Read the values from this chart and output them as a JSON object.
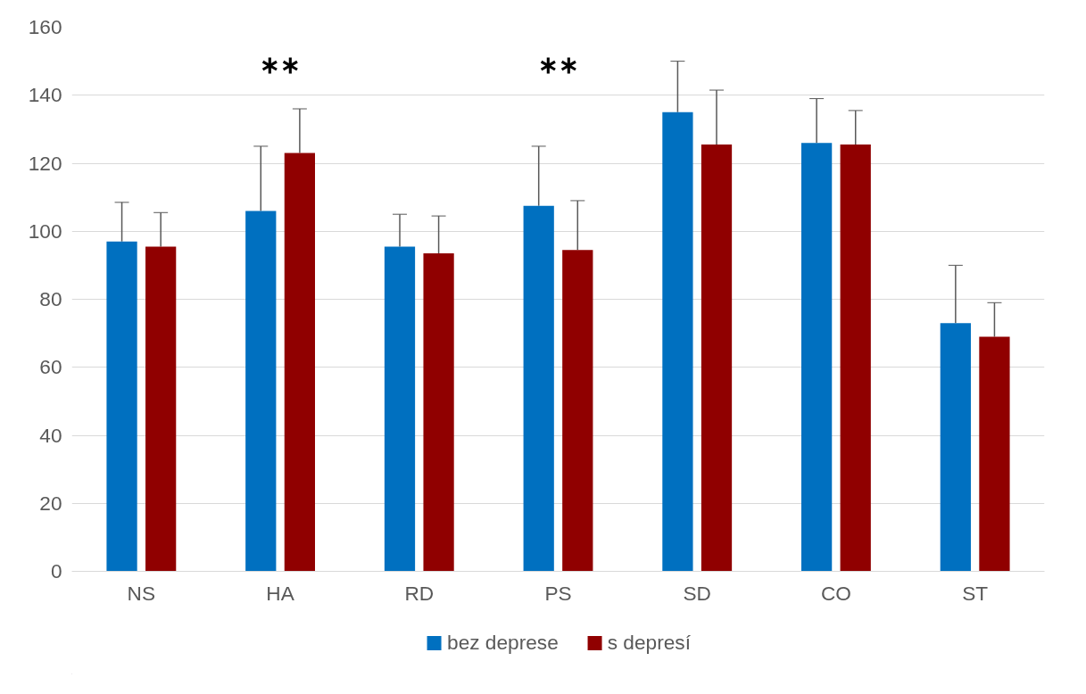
{
  "chart_data": {
    "type": "bar",
    "categories": [
      "NS",
      "HA",
      "RD",
      "PS",
      "SD",
      "CO",
      "ST"
    ],
    "series": [
      {
        "name": "bez deprese",
        "color": "#0070c0",
        "values": [
          97,
          106,
          95.5,
          107.5,
          135,
          126,
          73
        ],
        "errors": [
          [
            97,
            108.5
          ],
          [
            106,
            125
          ],
          [
            95.5,
            105
          ],
          [
            107.5,
            125
          ],
          [
            135,
            150
          ],
          [
            126,
            139
          ],
          [
            73,
            90
          ]
        ]
      },
      {
        "name": "s depresí",
        "color": "#900000",
        "values": [
          95.5,
          123,
          93.5,
          94.5,
          125.5,
          125.5,
          69
        ],
        "errors": [
          [
            95.5,
            105.5
          ],
          [
            123,
            136
          ],
          [
            93.5,
            104.5
          ],
          [
            94.5,
            109
          ],
          [
            125.5,
            141.5
          ],
          [
            125.5,
            135.5
          ],
          [
            69,
            79
          ]
        ]
      }
    ],
    "ylim": [
      0,
      160
    ],
    "yticks": [
      0,
      20,
      40,
      60,
      80,
      100,
      120,
      140,
      160
    ],
    "annotations": [
      "∗∗",
      "∗∗"
    ],
    "grid": "y",
    "legend": "bottom"
  }
}
